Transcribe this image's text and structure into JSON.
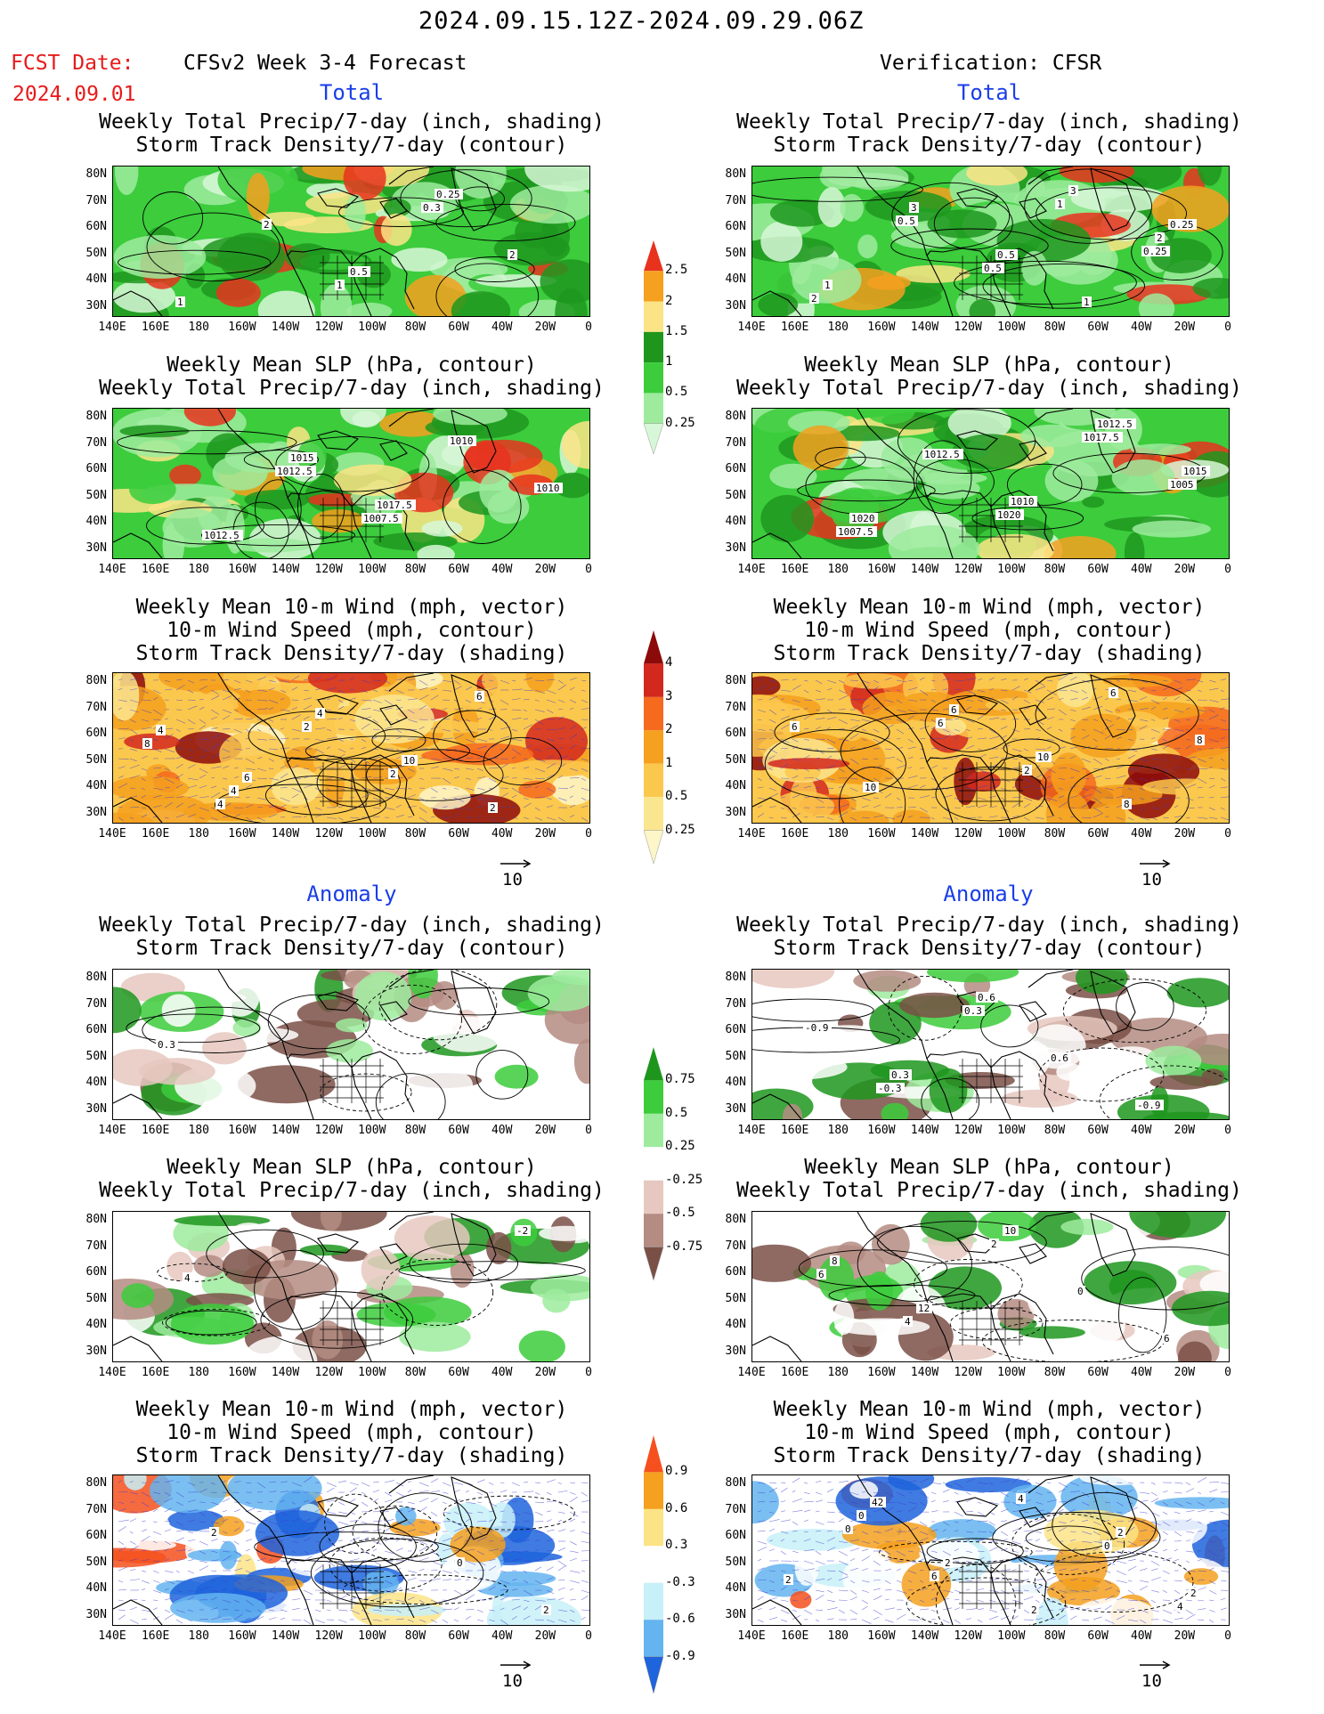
{
  "header": {
    "title": "2024.09.15.12Z-2024.09.29.06Z",
    "fcst_label": "FCST Date:",
    "fcst_date": "2024.09.01",
    "left_model": "CFSv2 Week 3-4 Forecast",
    "right_model": "Verification: CFSR"
  },
  "sections": {
    "total": "Total",
    "anomaly": "Anomaly"
  },
  "panel_titles": {
    "precip_storm": [
      "Weekly Total Precip/7-day (inch, shading)",
      "Storm Track Density/7-day (contour)"
    ],
    "slp_precip": [
      "Weekly Mean SLP (hPa, contour)",
      "Weekly Total Precip/7-day (inch, shading)"
    ],
    "wind_storm": [
      "Weekly Mean 10-m Wind (mph, vector)",
      "10-m Wind Speed (mph, contour)",
      "Storm Track Density/7-day (shading)"
    ]
  },
  "axes": {
    "lat_labels": [
      "80N",
      "70N",
      "60N",
      "50N",
      "40N",
      "30N"
    ],
    "lon_labels": [
      "140E",
      "160E",
      "180",
      "160W",
      "140W",
      "120W",
      "100W",
      "80W",
      "60W",
      "40W",
      "20W",
      "0"
    ]
  },
  "vector_key": "10",
  "colorbars": {
    "precip_total": {
      "labels": [
        "2.5",
        "2",
        "1.5",
        "1",
        "0.5",
        "0.25"
      ],
      "colors": [
        "#e8321e",
        "#f5a01e",
        "#fbe486",
        "#1e961e",
        "#3ccc3c",
        "#9eeb9e",
        "#d8f7d8"
      ]
    },
    "storm_total": {
      "labels": [
        "4",
        "3",
        "2",
        "1",
        "0.5",
        "0.25"
      ],
      "colors": [
        "#8c0a0a",
        "#d2281e",
        "#f56a1e",
        "#f5a01e",
        "#fbc84e",
        "#fbe690",
        "#fdf6c8"
      ]
    },
    "precip_anom": {
      "labels": [
        "0.75",
        "0.5",
        "0.25",
        "-0.25",
        "-0.5",
        "-0.75"
      ],
      "colors": [
        "#1e961e",
        "#3ccc3c",
        "#9eeb9e",
        "#ffffff",
        "#e6c8c0",
        "#b48c82",
        "#7a5046"
      ]
    },
    "storm_anom": {
      "labels": [
        "0.9",
        "0.6",
        "0.3",
        "-0.3",
        "-0.6",
        "-0.9"
      ],
      "colors": [
        "#f5501e",
        "#f5a01e",
        "#fbe486",
        "#ffffff",
        "#c8f0f8",
        "#64b4f0",
        "#1e64dc"
      ]
    }
  },
  "contour_labels": {
    "fc_precip_total": [
      "1",
      "0.3",
      "2",
      "1",
      "2",
      "0.5",
      "0.25"
    ],
    "obs_precip_total": [
      "1",
      "0.25",
      "2",
      "0.5",
      "0.5",
      "3",
      "2",
      "1",
      "3",
      "0.5",
      "1",
      "0.25"
    ],
    "fc_slp_total": [
      "1012.5",
      "1007.5",
      "1010",
      "1010",
      "1012.5",
      "1015",
      "1017.5"
    ],
    "obs_slp_total": [
      "1020",
      "1017.5",
      "1005",
      "1007.5",
      "1012.5",
      "1010",
      "1012.5",
      "1015",
      "1020"
    ],
    "fc_wind_total": [
      "4",
      "2",
      "2",
      "6",
      "8",
      "4",
      "4",
      "10",
      "2",
      "4",
      "6"
    ],
    "obs_wind_total": [
      "6",
      "2",
      "6",
      "8",
      "10",
      "6",
      "10",
      "8",
      "6"
    ],
    "fc_precip_anom": [
      "0.3"
    ],
    "obs_precip_anom": [
      "-0.3",
      "0.3",
      "0.6",
      "-0.9",
      "-0.9",
      "0.3",
      "0.6"
    ],
    "fc_slp_anom": [
      "-2",
      "4"
    ],
    "obs_slp_anom": [
      "6",
      "4",
      "2",
      "0",
      "6",
      "8",
      "12",
      "10"
    ],
    "fc_wind_anom": [
      "0",
      "2",
      "2"
    ],
    "obs_wind_anom": [
      "4",
      "0",
      "6",
      "4",
      "0",
      "2",
      "0",
      "2",
      "2",
      "2",
      "2",
      "42"
    ]
  }
}
